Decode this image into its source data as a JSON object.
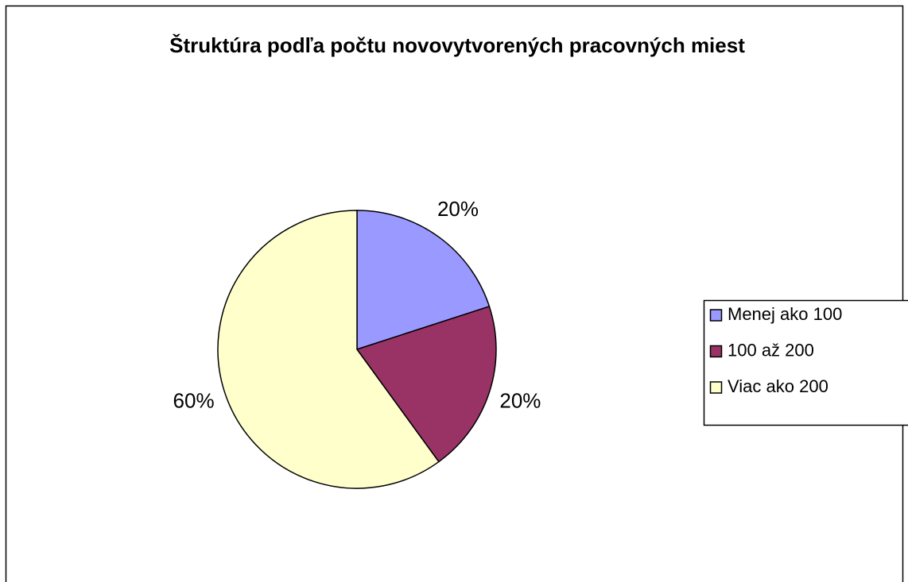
{
  "chart_data": {
    "type": "pie",
    "title": "Štruktúra podľa počtu novovytvorených pracovných miest",
    "categories": [
      "Menej ako 100",
      "100 až 200",
      "Viac ako 200"
    ],
    "values": [
      20,
      20,
      60
    ],
    "value_labels": [
      "20%",
      "20%",
      "60%"
    ],
    "colors": [
      "#9999ff",
      "#993366",
      "#ffffcc"
    ],
    "legend": "right"
  }
}
